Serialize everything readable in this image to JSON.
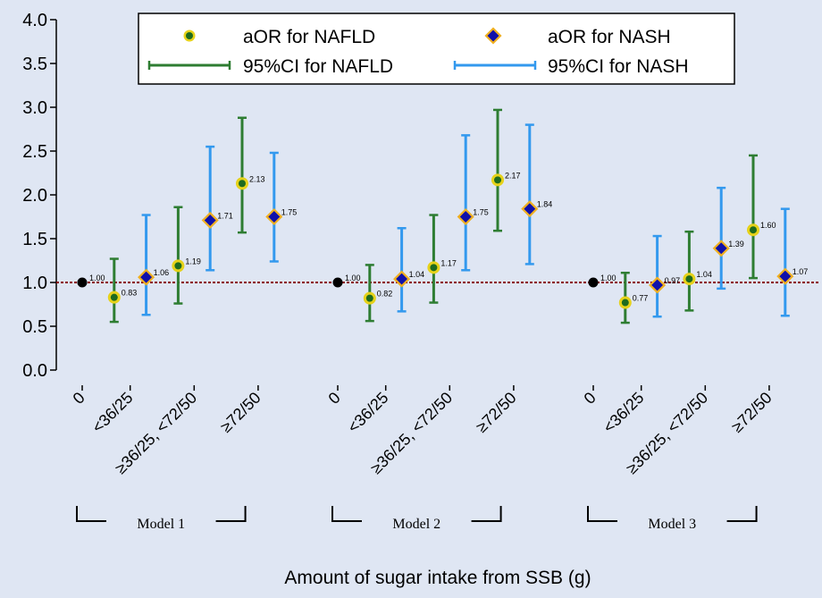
{
  "chart_data": {
    "type": "scatter",
    "xlabel": "Amount of sugar intake from SSB (g)",
    "ylabel": "",
    "ylim": [
      0,
      4
    ],
    "yticks": [
      "0.0",
      "0.5",
      "1.0",
      "1.5",
      "2.0",
      "2.5",
      "3.0",
      "3.5",
      "4.0"
    ],
    "reference_line": 1.0,
    "categories": [
      "0",
      "<36/25",
      "≥36/25, <72/50",
      "≥72/50"
    ],
    "groups": [
      {
        "label": "Model 1",
        "reference": {
          "value": 1.0,
          "label": "1.00"
        },
        "nafld": [
          {
            "category": "<36/25",
            "aor": 0.83,
            "lo": 0.55,
            "hi": 1.27,
            "label": "0.83"
          },
          {
            "category": "≥36/25, <72/50",
            "aor": 1.19,
            "lo": 0.76,
            "hi": 1.86,
            "label": "1.19"
          },
          {
            "category": "≥72/50",
            "aor": 2.13,
            "lo": 1.57,
            "hi": 2.88,
            "label": "2.13"
          }
        ],
        "nash": [
          {
            "category": "<36/25",
            "aor": 1.06,
            "lo": 0.63,
            "hi": 1.77,
            "label": "1.06"
          },
          {
            "category": "≥36/25, <72/50",
            "aor": 1.71,
            "lo": 1.14,
            "hi": 2.55,
            "label": "1.71"
          },
          {
            "category": "≥72/50",
            "aor": 1.75,
            "lo": 1.24,
            "hi": 2.48,
            "label": "1.75"
          }
        ]
      },
      {
        "label": "Model 2",
        "reference": {
          "value": 1.0,
          "label": "1.00"
        },
        "nafld": [
          {
            "category": "<36/25",
            "aor": 0.82,
            "lo": 0.56,
            "hi": 1.2,
            "label": "0.82"
          },
          {
            "category": "≥36/25, <72/50",
            "aor": 1.17,
            "lo": 0.77,
            "hi": 1.77,
            "label": "1.17"
          },
          {
            "category": "≥72/50",
            "aor": 2.17,
            "lo": 1.59,
            "hi": 2.97,
            "label": "2.17"
          }
        ],
        "nash": [
          {
            "category": "<36/25",
            "aor": 1.04,
            "lo": 0.67,
            "hi": 1.62,
            "label": "1.04"
          },
          {
            "category": "≥36/25, <72/50",
            "aor": 1.75,
            "lo": 1.14,
            "hi": 2.68,
            "label": "1.75"
          },
          {
            "category": "≥72/50",
            "aor": 1.84,
            "lo": 1.21,
            "hi": 2.8,
            "label": "1.84"
          }
        ]
      },
      {
        "label": "Model 3",
        "reference": {
          "value": 1.0,
          "label": "1.00"
        },
        "nafld": [
          {
            "category": "<36/25",
            "aor": 0.77,
            "lo": 0.54,
            "hi": 1.11,
            "label": "0.77"
          },
          {
            "category": "≥36/25, <72/50",
            "aor": 1.04,
            "lo": 0.68,
            "hi": 1.58,
            "label": "1.04"
          },
          {
            "category": "≥72/50",
            "aor": 1.6,
            "lo": 1.05,
            "hi": 2.45,
            "label": "1.60"
          }
        ],
        "nash": [
          {
            "category": "<36/25",
            "aor": 0.97,
            "lo": 0.61,
            "hi": 1.53,
            "label": "0.97"
          },
          {
            "category": "≥36/25, <72/50",
            "aor": 1.39,
            "lo": 0.93,
            "hi": 2.08,
            "label": "1.39"
          },
          {
            "category": "≥72/50",
            "aor": 1.07,
            "lo": 0.62,
            "hi": 1.84,
            "label": "1.07"
          }
        ]
      }
    ],
    "legend": {
      "placement": "top",
      "entries": [
        {
          "key": "nafld_point",
          "label": "aOR for NAFLD"
        },
        {
          "key": "nash_point",
          "label": "aOR for NASH"
        },
        {
          "key": "nafld_ci",
          "label": "95%CI for NAFLD"
        },
        {
          "key": "nash_ci",
          "label": "95%CI for NASH"
        }
      ]
    },
    "colors": {
      "background": "#dfe6f3",
      "nafld_ci": "#2e7d32",
      "nafld_fill": "#1e6b1e",
      "nafld_ring": "#e6d21a",
      "nash_ci": "#3399ee",
      "nash_fill": "#1010aa",
      "nash_edge": "#f0b020",
      "reference_line": "#8b0000",
      "reference_point": "#000000"
    }
  }
}
